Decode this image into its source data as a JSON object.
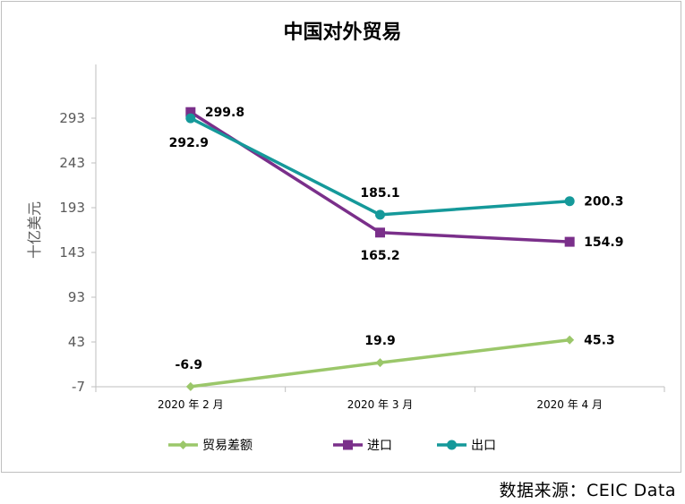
{
  "chart_data": {
    "type": "line",
    "title": "中国对外贸易",
    "ylabel": "十亿美元",
    "xlabel": "",
    "ylim": [
      -7,
      343
    ],
    "yticks": [
      293,
      243,
      193,
      143,
      93,
      43,
      -7
    ],
    "categories": [
      "2020 年 2 月",
      "2020 年 3 月",
      "2020 年 4 月"
    ],
    "series": [
      {
        "name": "贸易差额",
        "color": "#9bc76a",
        "marker": "diamond",
        "values": [
          -6.9,
          19.9,
          45.3
        ],
        "labels": [
          "-6.9",
          "19.9",
          "45.3"
        ]
      },
      {
        "name": "进口",
        "color": "#7a2f8a",
        "marker": "square",
        "values": [
          299.8,
          165.2,
          154.9
        ],
        "labels": [
          "299.8",
          "165.2",
          "154.9"
        ]
      },
      {
        "name": "出口",
        "color": "#15999a",
        "marker": "circle",
        "values": [
          292.9,
          185.1,
          200.3
        ],
        "labels": [
          "292.9",
          "185.1",
          "200.3"
        ]
      }
    ],
    "grid": false,
    "legend_position": "bottom"
  },
  "source": "数据来源：CEIC Data"
}
